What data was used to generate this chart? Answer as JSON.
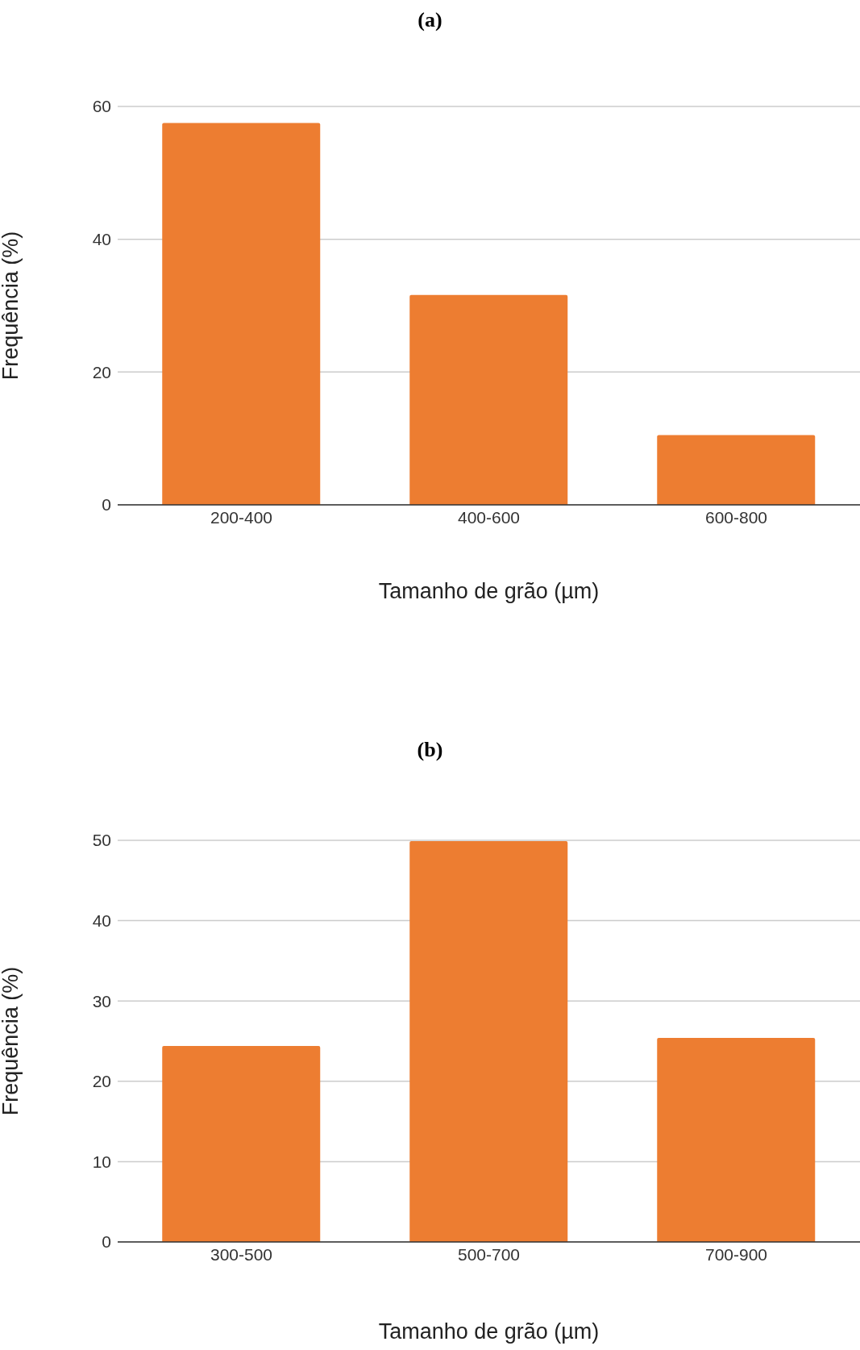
{
  "chart_data": [
    {
      "type": "bar",
      "title": "(a)",
      "xlabel": "Tamanho de grão (µm)",
      "ylabel": "Frequência (%)",
      "categories": [
        "200-400",
        "400-600",
        "600-800"
      ],
      "values": [
        57.5,
        31.6,
        10.5
      ],
      "color": "#ed7d31",
      "ylim": [
        0,
        60
      ],
      "yticks": [
        0,
        20,
        40,
        60
      ],
      "grid": "y"
    },
    {
      "type": "bar",
      "title": "(b)",
      "xlabel": "Tamanho de grão (µm)",
      "ylabel": "Frequência (%)",
      "categories": [
        "300-500",
        "500-700",
        "700-900"
      ],
      "values": [
        24.4,
        49.9,
        25.4
      ],
      "color": "#ed7d31",
      "ylim": [
        0,
        50
      ],
      "yticks": [
        0,
        10,
        20,
        30,
        40,
        50
      ],
      "grid": "y"
    }
  ]
}
